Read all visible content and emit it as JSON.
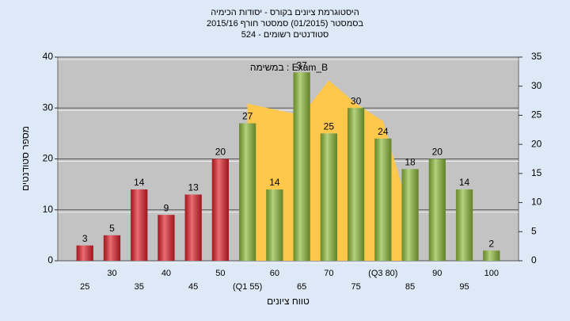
{
  "chart_data": {
    "type": "bar",
    "title": "היסטוגרמת ציונים בקורס - יסודות הכימיה",
    "subtitle": [
      "בסמסטר (01/2015) סמסטר חורף 2015/16",
      "סטודנטים רשומים - 524"
    ],
    "annotation": "במשימה : Exam_B",
    "xlabel": "טווח ציונים",
    "ylabel": "מספר סטודנטים",
    "categories": [
      "25",
      "30",
      "35",
      "40",
      "45",
      "50",
      "(Q1 55)",
      "60",
      "65",
      "70",
      "75",
      "(Q3 80)",
      "85",
      "90",
      "95",
      "100"
    ],
    "series": [
      {
        "type": "bar",
        "colors": [
          "#e0202a",
          "#e0202a",
          "#e0202a",
          "#e0202a",
          "#e0202a",
          "#e0202a",
          "#8dbb3a",
          "#8dbb3a",
          "#8dbb3a",
          "#8dbb3a",
          "#8dbb3a",
          "#8dbb3a",
          "#8dbb3a",
          "#8dbb3a",
          "#8dbb3a",
          "#8dbb3a"
        ],
        "values": [
          3,
          5,
          14,
          9,
          13,
          20,
          27,
          14,
          37,
          25,
          30,
          24,
          18,
          20,
          14,
          2
        ]
      },
      {
        "type": "area",
        "axis": "y2",
        "color": "#ffc84a",
        "values": [
          null,
          null,
          null,
          null,
          null,
          null,
          27,
          26,
          25,
          31,
          27,
          24,
          8,
          null,
          null,
          null
        ]
      }
    ],
    "ylim": [
      0,
      40
    ],
    "yticks": [
      0,
      10,
      20,
      30,
      40
    ],
    "y2lim": [
      0,
      35
    ],
    "y2ticks": [
      0,
      5,
      10,
      15,
      20,
      25,
      30,
      35
    ],
    "grid": true
  }
}
